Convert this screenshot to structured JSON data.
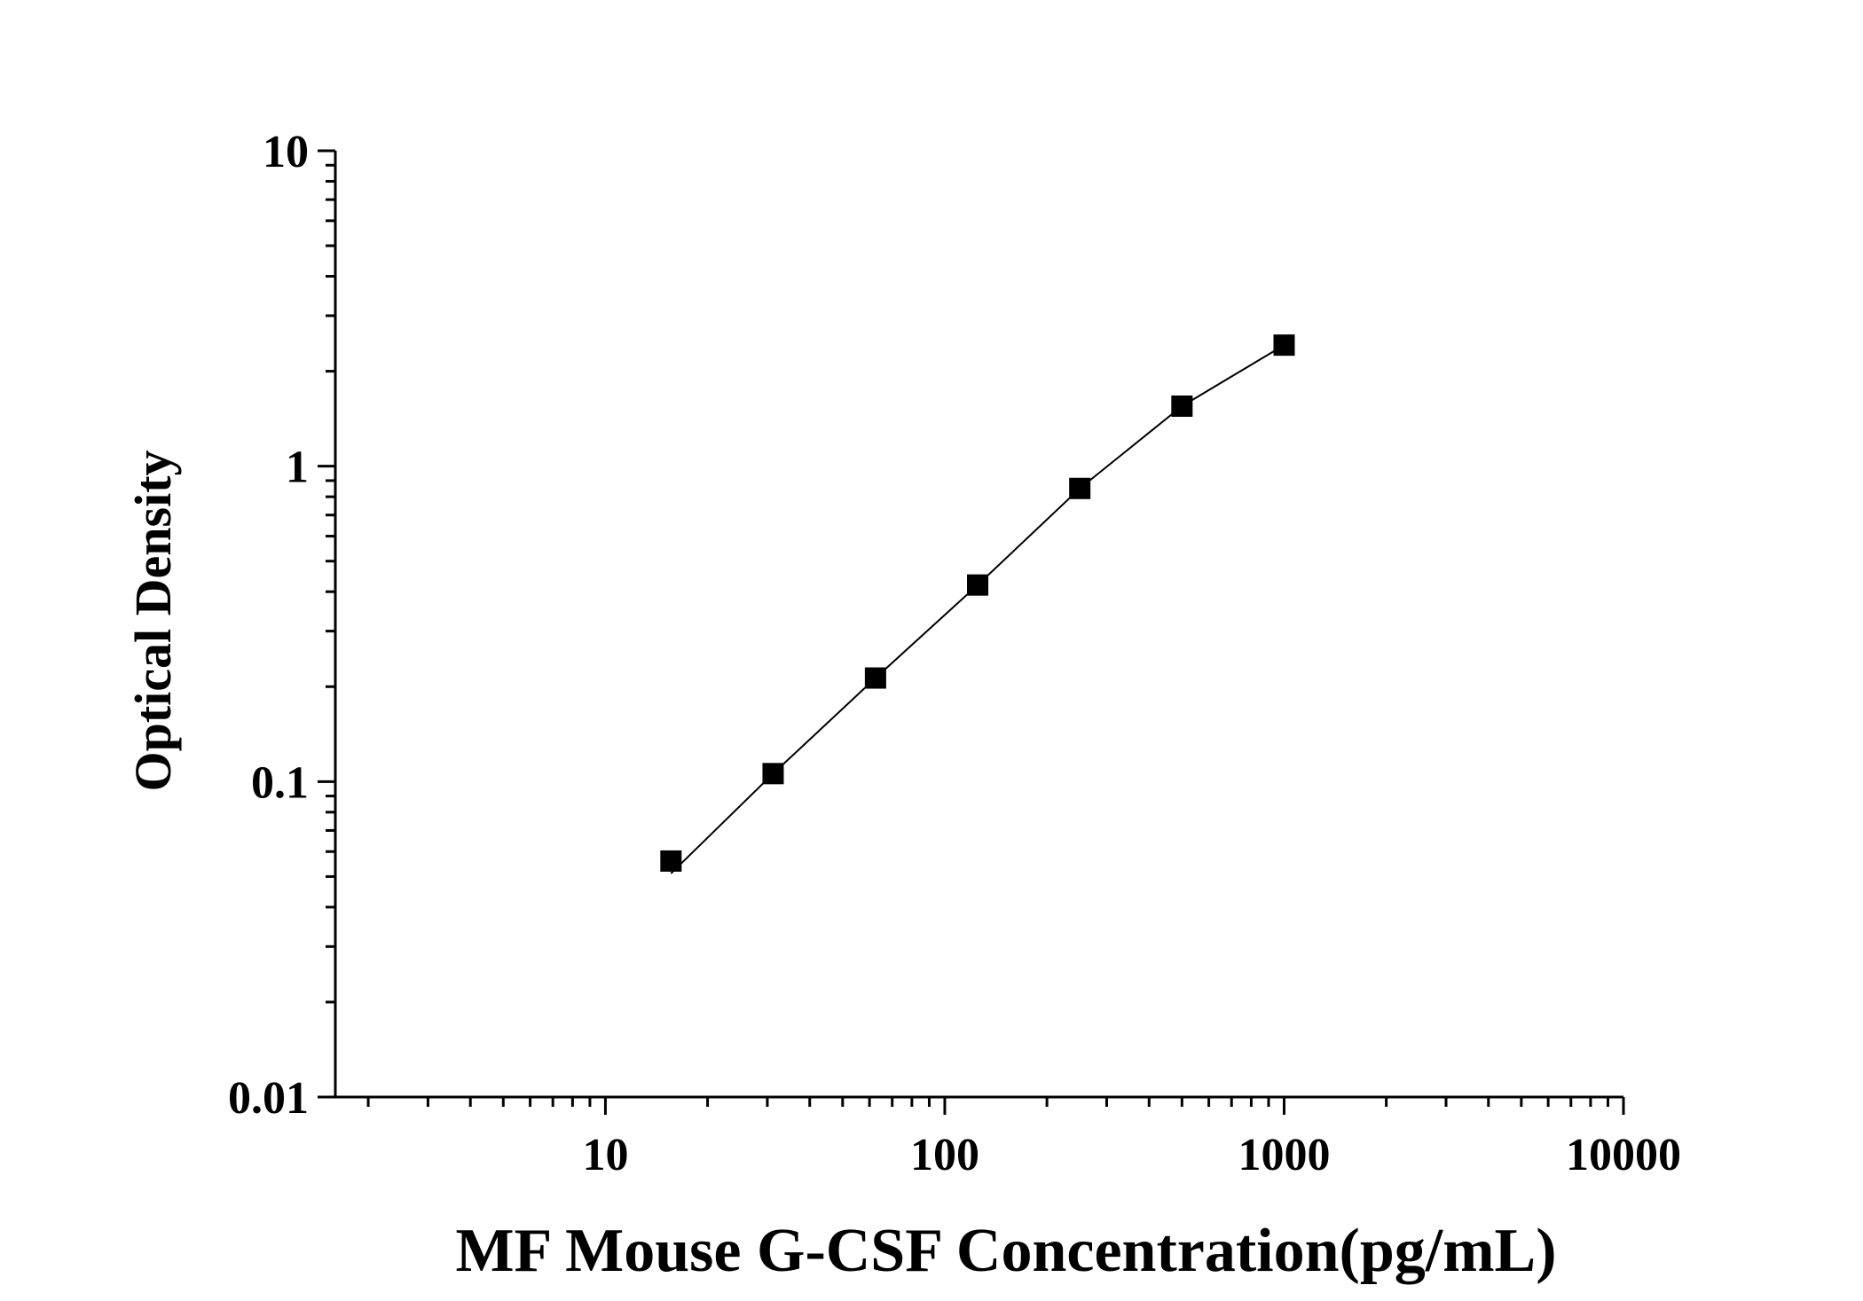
{
  "chart_data": {
    "type": "scatter",
    "title": "",
    "xlabel": "MF Mouse G-CSF Concentration(pg/mL)",
    "ylabel": "Optical Density",
    "x_scale": "log",
    "y_scale": "log",
    "xlim": [
      1.6,
      10000
    ],
    "ylim": [
      0.01,
      10
    ],
    "x_ticks": [
      "10",
      "100",
      "1000",
      "10000"
    ],
    "y_ticks": [
      "0.01",
      "0.1",
      "1",
      "10"
    ],
    "grid": false,
    "legend": "none",
    "marker": "square",
    "marker_color": "#000000",
    "line_color": "#000000",
    "series": [
      {
        "x": [
          15.6,
          31.2,
          62.5,
          125,
          250,
          500,
          1000
        ],
        "y": [
          0.056,
          0.106,
          0.213,
          0.42,
          0.85,
          1.55,
          2.42
        ]
      }
    ]
  }
}
